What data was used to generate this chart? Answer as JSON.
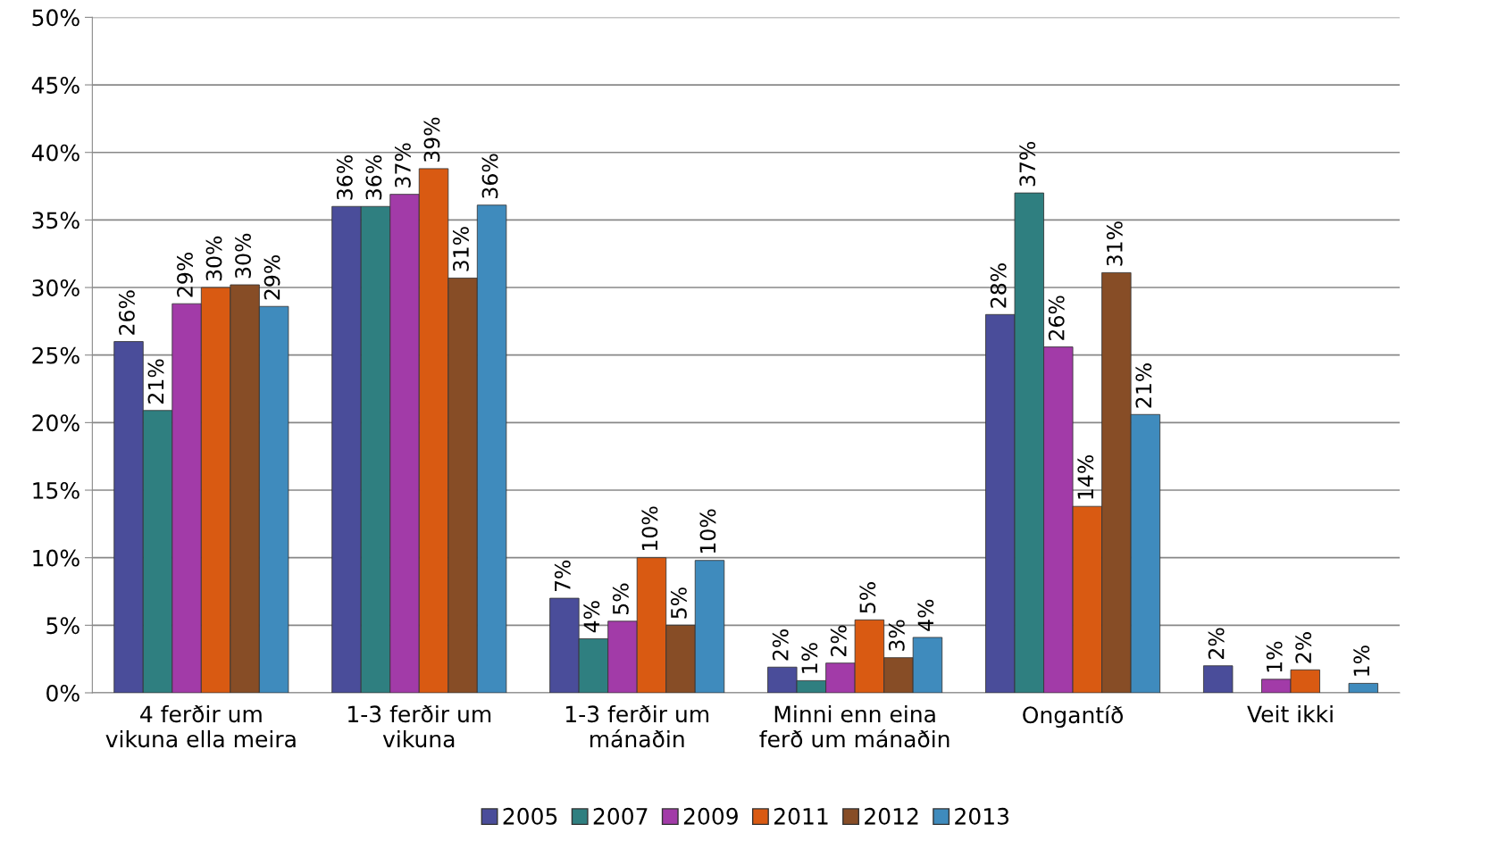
{
  "chart_data": {
    "type": "bar",
    "categories": [
      "4 ferðir um\nvikuna ella meira",
      "1-3 ferðir um\nvikuna",
      "1-3 ferðir um\nmánaðin",
      "Minni enn eina\nferð um mánaðin",
      "Ongantíð",
      "Veit ikki"
    ],
    "series": [
      {
        "name": "2005",
        "color": "#4a4d9a",
        "values": [
          26.0,
          36.0,
          7.0,
          1.9,
          28.0,
          2.0
        ],
        "value_labels": [
          "26%",
          "36%",
          "7%",
          "2%",
          "28%",
          "2%"
        ]
      },
      {
        "name": "2007",
        "color": "#2f7f80",
        "values": [
          20.9,
          36.0,
          4.0,
          0.9,
          37.0,
          null
        ],
        "value_labels": [
          "21%",
          "36%",
          "4%",
          "1%",
          "37%",
          null
        ]
      },
      {
        "name": "2009",
        "color": "#a23ba8",
        "values": [
          28.8,
          36.9,
          5.3,
          2.2,
          25.6,
          1.0
        ],
        "value_labels": [
          "29%",
          "37%",
          "5%",
          "2%",
          "26%",
          "1%"
        ]
      },
      {
        "name": "2011",
        "color": "#d95a12",
        "values": [
          30.0,
          38.8,
          10.0,
          5.4,
          13.8,
          1.7
        ],
        "value_labels": [
          "30%",
          "39%",
          "10%",
          "5%",
          "14%",
          "2%"
        ]
      },
      {
        "name": "2012",
        "color": "#874d26",
        "values": [
          30.2,
          30.7,
          5.0,
          2.6,
          31.1,
          null
        ],
        "value_labels": [
          "30%",
          "31%",
          "5%",
          "3%",
          "31%",
          null
        ]
      },
      {
        "name": "2013",
        "color": "#3f8bbd",
        "values": [
          28.6,
          36.1,
          9.8,
          4.1,
          20.6,
          0.7
        ],
        "value_labels": [
          "29%",
          "36%",
          "10%",
          "4%",
          "21%",
          "1%"
        ]
      }
    ],
    "ylim": [
      0,
      50
    ],
    "yticks": [
      {
        "value": 0,
        "label": "0%"
      },
      {
        "value": 5,
        "label": "5%"
      },
      {
        "value": 10,
        "label": "10%"
      },
      {
        "value": 15,
        "label": "15%"
      },
      {
        "value": 20,
        "label": "20%"
      },
      {
        "value": 25,
        "label": "25%"
      },
      {
        "value": 30,
        "label": "30%"
      },
      {
        "value": 35,
        "label": "35%"
      },
      {
        "value": 40,
        "label": "40%"
      },
      {
        "value": 45,
        "label": "45%"
      },
      {
        "value": 50,
        "label": "50%"
      }
    ],
    "grid": "y",
    "legend": "bottom"
  }
}
